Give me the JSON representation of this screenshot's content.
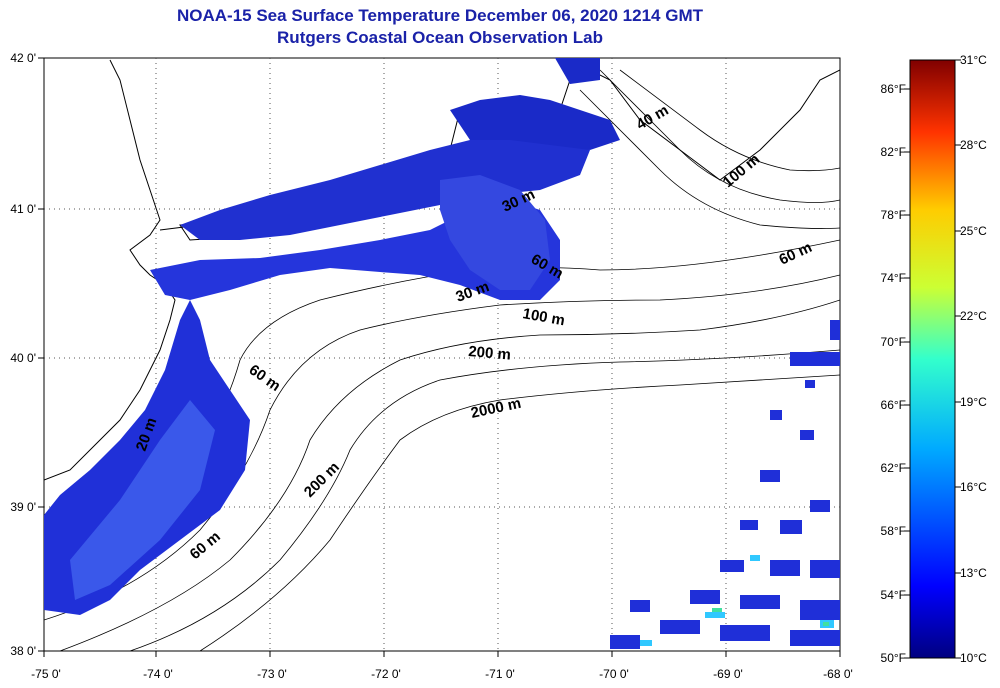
{
  "header": {
    "title_line1": "NOAA-15 Sea Surface Temperature December 06, 2020 1214 GMT",
    "title_line2": "Rutgers Coastal Ocean Observation Lab"
  },
  "map": {
    "lat_ticks": [
      "42 0'",
      "41 0'",
      "40 0'",
      "39 0'",
      "38 0'"
    ],
    "lon_ticks": [
      "-75 0'",
      "-74 0'",
      "-73 0'",
      "-72 0'",
      "-71 0'",
      "-70 0'",
      "-69 0'",
      "-68 0'"
    ],
    "lat_range": [
      38,
      42
    ],
    "lon_range": [
      -75,
      -68
    ],
    "grid": "dotted",
    "contour_labels": [
      "40 m",
      "100 m",
      "60 m",
      "30 m",
      "30 m",
      "60 m",
      "100 m",
      "200 m",
      "60 m",
      "2000 m",
      "20 m",
      "200 m",
      "60 m"
    ],
    "colors": {
      "water_deep_blue": "#1f2fd8",
      "water_mid_blue": "#3a55e6",
      "water_cyan": "#30c8ff",
      "water_green": "#40e0a0",
      "title_blue": "#1a22a8"
    }
  },
  "colorbar": {
    "fahrenheit_ticks": [
      "86°F",
      "82°F",
      "78°F",
      "74°F",
      "70°F",
      "66°F",
      "62°F",
      "58°F",
      "54°F",
      "50°F"
    ],
    "celsius_ticks": [
      "31°C",
      "28°C",
      "25°C",
      "22°C",
      "19°C",
      "16°C",
      "13°C",
      "10°C"
    ],
    "range_celsius": [
      10,
      31
    ],
    "colormap": "jet"
  }
}
